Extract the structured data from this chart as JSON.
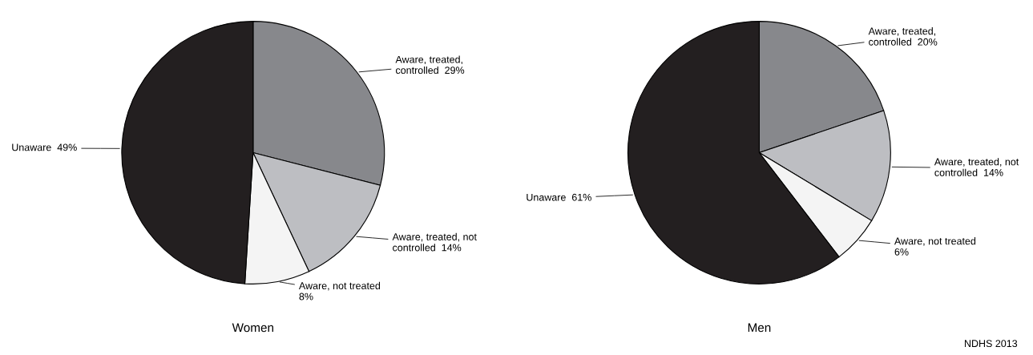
{
  "chart_data": [
    {
      "type": "pie",
      "title": "Women",
      "categories": [
        "Aware, treated,\ncontrolled",
        "Aware, treated, not\ncontrolled",
        "Aware, not treated\n",
        "Unaware"
      ],
      "values": [
        29,
        14,
        8,
        49
      ],
      "value_labels": [
        "29%",
        "14%",
        "8%",
        "49%"
      ],
      "colors": [
        "#87888c",
        "#bdbec2",
        "#f4f4f4",
        "#231f20"
      ]
    },
    {
      "type": "pie",
      "title": "Men",
      "categories": [
        "Aware, treated,\ncontrolled",
        "Aware, treated, not\ncontrolled",
        "Aware, not treated\n",
        "Unaware"
      ],
      "values": [
        20,
        14,
        6,
        61
      ],
      "value_labels": [
        "20%",
        "14%",
        "6%",
        "61%"
      ],
      "colors": [
        "#87888c",
        "#bdbec2",
        "#f4f4f4",
        "#231f20"
      ],
      "annotations": [
        "NDHS 2013"
      ]
    }
  ]
}
